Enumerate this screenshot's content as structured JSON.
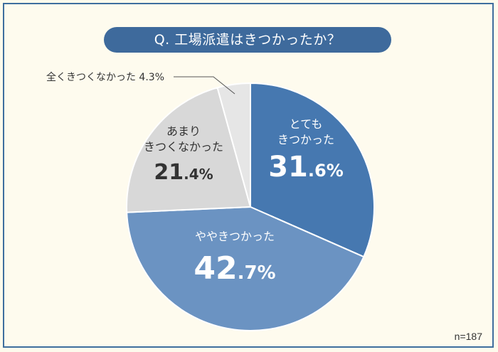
{
  "title": "Q. 工場派遣はきつかったか？",
  "sample_size": "n=187",
  "colors": {
    "background": "#fdfaec",
    "frame": "#3e6e9e",
    "title_bg": "#3e6a9c"
  },
  "chart_data": {
    "type": "pie",
    "title": "Q. 工場派遣はきつかったか？",
    "slices": [
      {
        "label_lines": [
          "とても",
          "きつかった"
        ],
        "value": 31.6,
        "value_int": "31",
        "value_dec": ".6%",
        "color": "#4678b0",
        "text_color": "#ffffff"
      },
      {
        "label_lines": [
          "ややきつかった"
        ],
        "value": 42.7,
        "value_int": "42",
        "value_dec": ".7%",
        "color": "#6b93c2",
        "text_color": "#ffffff"
      },
      {
        "label_lines": [
          "あまり",
          "きつくなかった"
        ],
        "value": 21.4,
        "value_int": "21",
        "value_dec": ".4%",
        "color": "#d8d8d8",
        "text_color": "#333333"
      },
      {
        "label_lines": [
          "全くきつくなかった 4.3%"
        ],
        "value": 4.3,
        "value_int": "",
        "value_dec": "",
        "color": "#e6e6e6",
        "text_color": "#333333",
        "external_label": true
      }
    ]
  }
}
